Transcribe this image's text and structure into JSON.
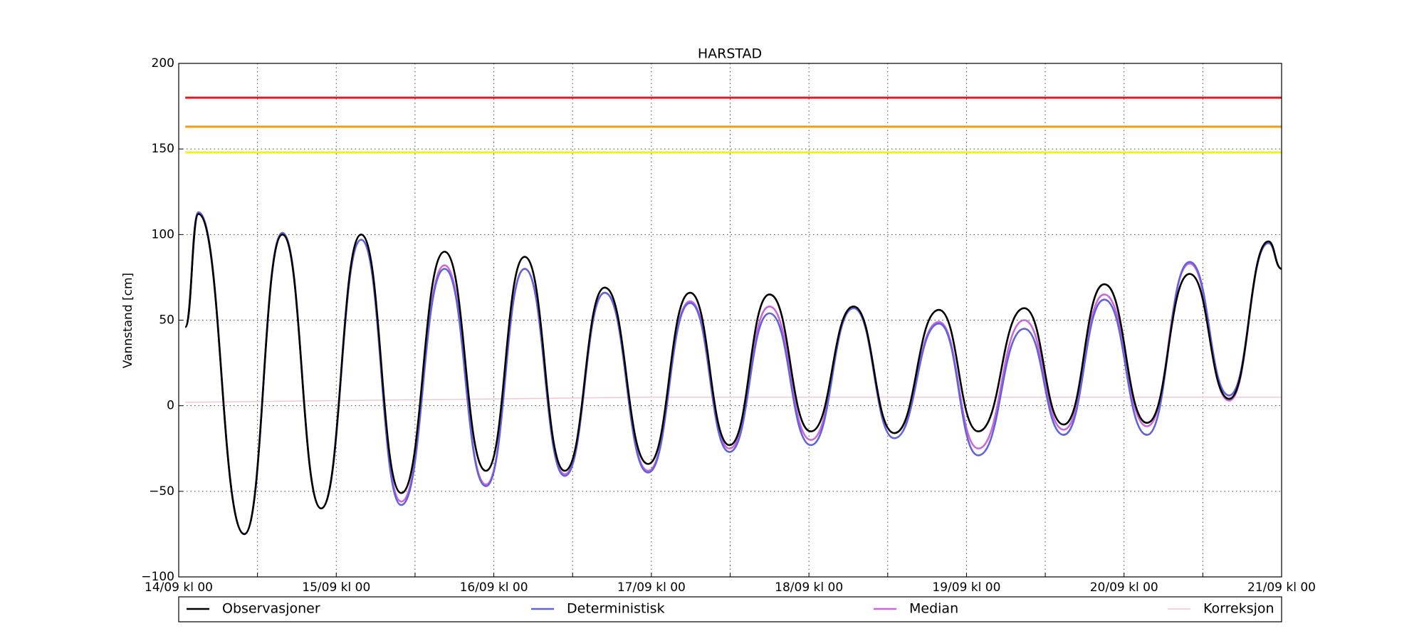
{
  "chart_data": {
    "type": "line",
    "title": "HARSTAD",
    "y_label": "Vannstand [cm]",
    "x": [
      1,
      3,
      10,
      15.8,
      21.7,
      27.8,
      33.9,
      40.5,
      46.8,
      52.7,
      58.8,
      64.9,
      71.5,
      77.9,
      83.9,
      90,
      96.3,
      102.8,
      109,
      115.8,
      121.8,
      128.8,
      134.8,
      141,
      147.5,
      154,
      160,
      166,
      168
    ],
    "xlim": [
      0,
      168
    ],
    "xticks": [
      {
        "value": 0,
        "label": "14/09 kl 00"
      },
      {
        "value": 12,
        "label": null
      },
      {
        "value": 24,
        "label": "15/09 kl 00"
      },
      {
        "value": 36,
        "label": null
      },
      {
        "value": 48,
        "label": "16/09 kl 00"
      },
      {
        "value": 60,
        "label": null
      },
      {
        "value": 72,
        "label": "17/09 kl 00"
      },
      {
        "value": 84,
        "label": null
      },
      {
        "value": 96,
        "label": "18/09 kl 00"
      },
      {
        "value": 108,
        "label": null
      },
      {
        "value": 120,
        "label": "19/09 kl 00"
      },
      {
        "value": 132,
        "label": null
      },
      {
        "value": 144,
        "label": "20/09 kl 00"
      },
      {
        "value": 156,
        "label": null
      },
      {
        "value": 168,
        "label": "21/09 kl 00"
      }
    ],
    "ylim": [
      -100,
      200
    ],
    "yticks": [
      {
        "value": -100,
        "label": "−100"
      },
      {
        "value": -50,
        "label": "−50"
      },
      0,
      50,
      100,
      150,
      200
    ],
    "grid": true,
    "reference_lines": [
      {
        "value": 180,
        "color": "#e8191b"
      },
      {
        "value": 163,
        "color": "#f39c12"
      },
      {
        "value": 148,
        "color": "#f2f21a"
      }
    ],
    "series": [
      {
        "name": "Observasjoner",
        "color": "#000000",
        "values": [
          46,
          112,
          -75,
          100,
          -60,
          100,
          -51,
          90,
          -38,
          87,
          -38,
          69,
          -34,
          66,
          -23,
          65,
          -15,
          58,
          -16,
          56,
          -15,
          57,
          -11,
          71,
          -10,
          77,
          4,
          96,
          80
        ]
      },
      {
        "name": "Deterministisk",
        "color": "#6262d9",
        "values": [
          46,
          113,
          -75,
          101,
          -60,
          97,
          -58,
          80,
          -47,
          80,
          -41,
          66,
          -39,
          60,
          -27,
          54,
          -23,
          57,
          -19,
          48,
          -29,
          45,
          -17,
          62,
          -17,
          84,
          6,
          95,
          80
        ]
      },
      {
        "name": "Median",
        "color": "#cc66dd",
        "values": [
          46,
          113,
          -75,
          101,
          -60,
          97,
          -56,
          82,
          -46,
          80,
          -40,
          66,
          -38,
          61,
          -25,
          58,
          -20,
          58,
          -16,
          49,
          -25,
          50,
          -14,
          65,
          -12,
          83,
          3,
          95,
          80
        ]
      },
      {
        "name": "Korreksjon",
        "color": "#f4c6d0",
        "x": [
          1,
          72,
          168
        ],
        "values": [
          2,
          5,
          5
        ]
      }
    ]
  }
}
